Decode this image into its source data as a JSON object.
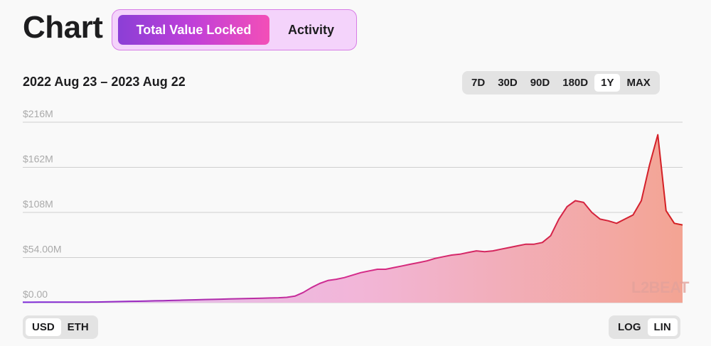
{
  "title": "Chart",
  "view_tabs": [
    {
      "label": "Total Value Locked",
      "active": true
    },
    {
      "label": "Activity",
      "active": false
    }
  ],
  "date_range": "2022 Aug 23 – 2023 Aug 22",
  "timeframes": [
    {
      "label": "7D",
      "selected": false
    },
    {
      "label": "30D",
      "selected": false
    },
    {
      "label": "90D",
      "selected": false
    },
    {
      "label": "180D",
      "selected": false
    },
    {
      "label": "1Y",
      "selected": true
    },
    {
      "label": "MAX",
      "selected": false
    }
  ],
  "units": [
    {
      "label": "USD",
      "selected": true
    },
    {
      "label": "ETH",
      "selected": false
    }
  ],
  "scales": [
    {
      "label": "LOG",
      "selected": false
    },
    {
      "label": "LIN",
      "selected": true
    }
  ],
  "watermark": {
    "text": "L2BEAT"
  },
  "colors": {
    "accent_purple": "#8b3fd6",
    "accent_pink": "#f34fb7",
    "line_start": "#7c2bd9",
    "line_end": "#d41f1f"
  },
  "chart_data": {
    "type": "area",
    "title": "",
    "xlabel": "",
    "ylabel": "",
    "x_range": [
      "2022-08-23",
      "2023-08-22"
    ],
    "ylim": [
      0,
      216
    ],
    "y_unit": "$M",
    "y_tick_values": [
      0,
      54,
      108,
      162,
      216
    ],
    "y_tick_labels": [
      "$0.00",
      "$54.00M",
      "$108M",
      "$162M",
      "$216M"
    ],
    "grid": true,
    "scale": "linear",
    "series": [
      {
        "values": [
          0.5,
          0.5,
          0.6,
          0.6,
          0.6,
          0.6,
          0.6,
          0.7,
          0.7,
          0.8,
          0.9,
          1.2,
          1.4,
          1.6,
          1.7,
          1.9,
          2.2,
          2.4,
          2.6,
          2.9,
          3.2,
          3.4,
          3.7,
          3.9,
          4.2,
          4.5,
          4.7,
          4.9,
          5.1,
          5.3,
          5.6,
          5.9,
          6.4,
          7.8,
          12.2,
          18,
          23,
          26.5,
          28,
          30,
          33,
          36,
          38,
          40,
          40,
          42,
          44,
          46,
          48,
          50,
          53,
          55,
          57,
          58,
          60,
          62,
          61,
          62,
          64,
          66,
          68,
          70,
          70,
          72,
          80,
          100,
          115,
          122,
          120,
          108,
          100,
          98,
          95,
          100,
          105,
          122,
          165,
          201,
          110,
          95,
          93
        ]
      }
    ]
  }
}
